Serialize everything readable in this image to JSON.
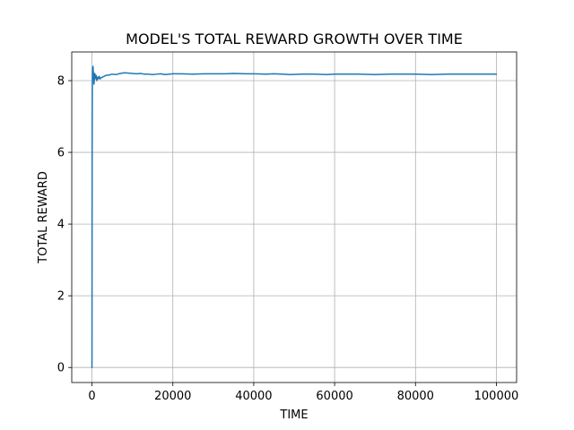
{
  "chart_data": {
    "type": "line",
    "title": "MODEL'S TOTAL REWARD GROWTH OVER TIME",
    "xlabel": "TIME",
    "ylabel": "TOTAL REWARD",
    "xlim": [
      -5000,
      105000
    ],
    "ylim": [
      -0.42,
      8.8
    ],
    "x_ticks": [
      0,
      20000,
      40000,
      60000,
      80000,
      100000
    ],
    "x_tick_labels": [
      "0",
      "20000",
      "40000",
      "60000",
      "80000",
      "100000"
    ],
    "y_ticks": [
      0,
      2,
      4,
      6,
      8
    ],
    "y_tick_labels": [
      "0",
      "2",
      "4",
      "6",
      "8"
    ],
    "grid": true,
    "colors": {
      "series": "#1f77b4"
    },
    "series": [
      {
        "x": [
          0,
          20,
          50,
          80,
          100,
          150,
          200,
          250,
          300,
          400,
          500,
          600,
          700,
          800,
          1000,
          1200,
          1400,
          1600,
          1800,
          2000,
          2300,
          2600,
          3000,
          3500,
          4000,
          5000,
          6000,
          7000,
          8000,
          9000,
          10000,
          11000,
          12000,
          13000,
          14000,
          15000,
          16000,
          17000,
          18000,
          20000,
          22000,
          25000,
          28000,
          30000,
          33000,
          35000,
          38000,
          40000,
          43000,
          45000,
          47000,
          49000,
          52000,
          55000,
          58000,
          60000,
          63000,
          66000,
          70000,
          74000,
          78000,
          80000,
          84000,
          88000,
          90000,
          94000,
          97000,
          100000
        ],
        "values": [
          0.0,
          3.0,
          6.5,
          7.6,
          8.0,
          8.35,
          8.25,
          8.4,
          8.3,
          8.15,
          7.9,
          8.1,
          8.2,
          8.05,
          8.15,
          8.0,
          8.1,
          8.05,
          8.12,
          8.05,
          8.08,
          8.1,
          8.12,
          8.15,
          8.15,
          8.18,
          8.17,
          8.2,
          8.22,
          8.21,
          8.2,
          8.19,
          8.2,
          8.18,
          8.18,
          8.17,
          8.18,
          8.19,
          8.17,
          8.19,
          8.19,
          8.18,
          8.19,
          8.19,
          8.19,
          8.2,
          8.19,
          8.19,
          8.18,
          8.19,
          8.18,
          8.17,
          8.18,
          8.18,
          8.17,
          8.18,
          8.18,
          8.18,
          8.17,
          8.18,
          8.18,
          8.18,
          8.17,
          8.18,
          8.18,
          8.18,
          8.18,
          8.18
        ]
      }
    ]
  }
}
